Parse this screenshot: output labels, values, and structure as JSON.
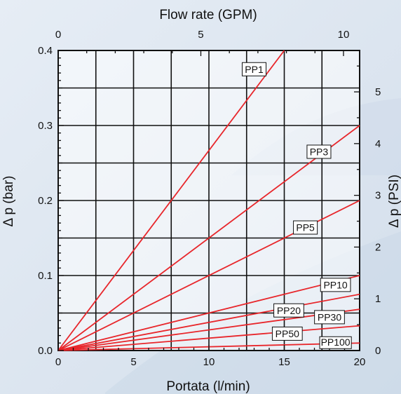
{
  "chart_data": {
    "type": "line",
    "xlabel": "Portata (l/min)",
    "ylabel": "Δ p (bar)",
    "x2label": "Flow rate (GPM)",
    "y2label": "Δ p (PSI)",
    "xlim": [
      0,
      20
    ],
    "ylim": [
      0,
      0.4
    ],
    "x2lim": [
      0,
      10.566
    ],
    "y2lim": [
      0,
      5.8
    ],
    "x_ticks": [
      0,
      5,
      10,
      15,
      20
    ],
    "y_ticks": [
      0.0,
      0.1,
      0.2,
      0.3,
      0.4
    ],
    "y_tick_labels": [
      "0.0",
      "0.1",
      "0.2",
      "0.3",
      "0.4"
    ],
    "x2_ticks": [
      0,
      5,
      10
    ],
    "y2_ticks": [
      0,
      1,
      2,
      3,
      4,
      5
    ],
    "grid": true,
    "line_color": "#e8262b",
    "series": [
      {
        "name": "PP1",
        "x": [
          0,
          15
        ],
        "y": [
          0,
          0.4
        ]
      },
      {
        "name": "PP3",
        "x": [
          0,
          20
        ],
        "y": [
          0,
          0.3
        ]
      },
      {
        "name": "PP5",
        "x": [
          0,
          20
        ],
        "y": [
          0,
          0.2
        ]
      },
      {
        "name": "PP10",
        "x": [
          0,
          20
        ],
        "y": [
          0,
          0.1
        ]
      },
      {
        "name": "PP20",
        "x": [
          0,
          20
        ],
        "y": [
          0,
          0.075
        ]
      },
      {
        "name": "PP30",
        "x": [
          0,
          20
        ],
        "y": [
          0,
          0.055
        ]
      },
      {
        "name": "PP50",
        "x": [
          0,
          20
        ],
        "y": [
          0,
          0.033
        ]
      },
      {
        "name": "PP100",
        "x": [
          0,
          20
        ],
        "y": [
          0,
          0.01
        ]
      }
    ]
  }
}
